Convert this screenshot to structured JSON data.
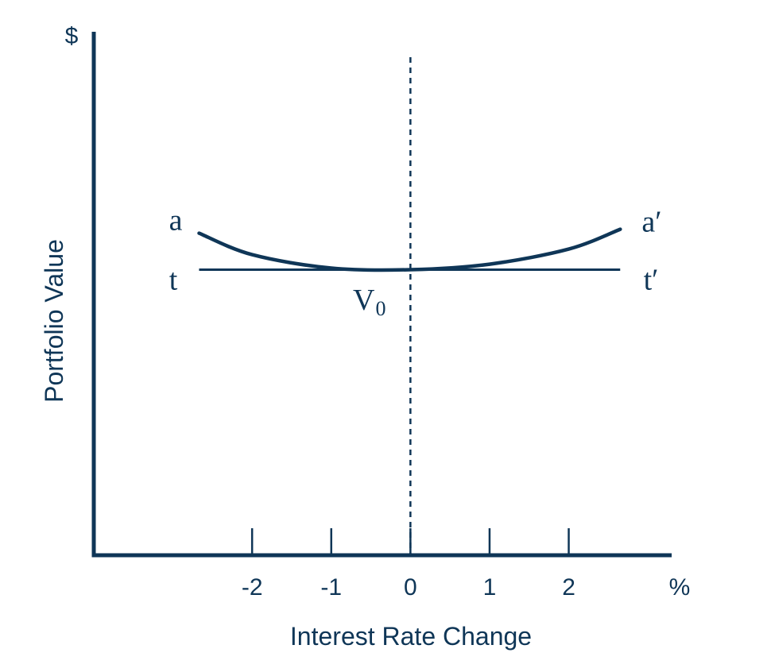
{
  "chart_data": {
    "type": "line",
    "title": "",
    "xlabel": "Interest Rate Change",
    "ylabel": "Portfolio Value",
    "x_unit": "%",
    "y_unit": "$",
    "xticks": [
      -2,
      -1,
      0,
      1,
      2
    ],
    "xtick_labels": [
      "-2",
      "-1",
      "0",
      "1",
      "2"
    ],
    "xlim": [
      -4,
      3.3
    ],
    "ylim": [
      0,
      6.6
    ],
    "reference_line_x": 0,
    "point_label": {
      "text": "V",
      "subscript": "0"
    },
    "series": [
      {
        "start_label": "a",
        "end_label": "a′",
        "x": [
          -2.67,
          -2,
          -1,
          0,
          1,
          2,
          2.65
        ],
        "y": [
          4.06,
          3.79,
          3.62,
          3.6,
          3.67,
          3.86,
          4.11
        ]
      },
      {
        "start_label": "t",
        "end_label": "t′",
        "x": [
          -2.67,
          2.65
        ],
        "y": [
          3.6,
          3.6
        ]
      }
    ],
    "grid": false,
    "legend": "none",
    "color": "#0f3657"
  }
}
